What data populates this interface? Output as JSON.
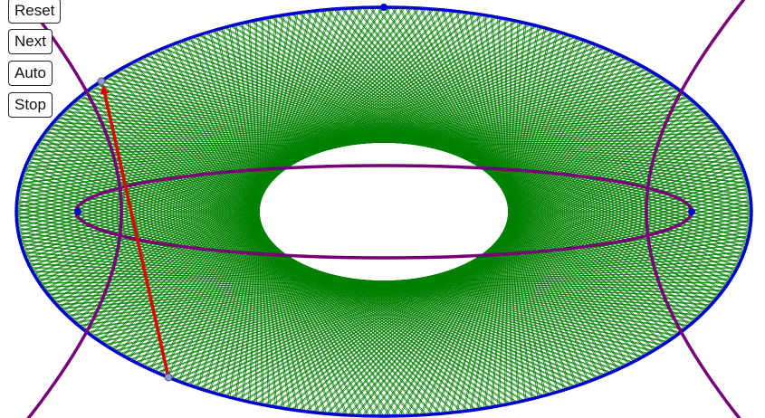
{
  "controls": {
    "reset_label": "Reset",
    "next_label": "Next",
    "auto_label": "Auto",
    "stop_label": "Stop"
  },
  "colors": {
    "ellipse": "#0000cc",
    "conics": "#770077",
    "chords": "#008000",
    "arrow": "#e00000",
    "point": "#0000cc",
    "moving_point": "#8899dd"
  }
}
